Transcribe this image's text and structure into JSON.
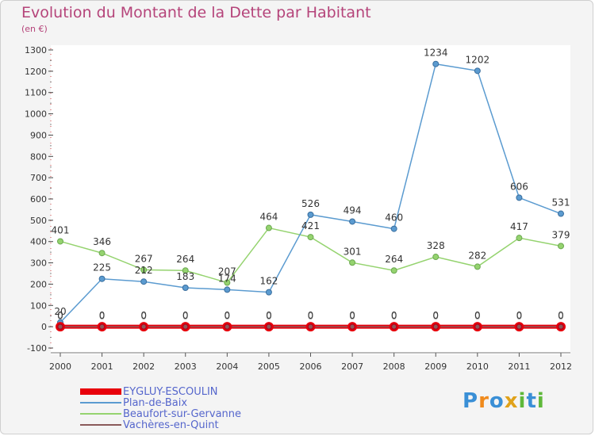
{
  "chart_data": {
    "type": "line",
    "title": "Evolution du Montant de la Dette par Habitant",
    "subtitle": "(en €)",
    "x": [
      "2000",
      "2001",
      "2002",
      "2003",
      "2004",
      "2005",
      "2006",
      "2007",
      "2008",
      "2009",
      "2010",
      "2011",
      "2012"
    ],
    "ylim": [
      -100,
      1300
    ],
    "yticks": [
      "-100",
      "0",
      "100",
      "200",
      "300",
      "400",
      "500",
      "600",
      "700",
      "800",
      "900",
      "1000",
      "1100",
      "1200",
      "1300"
    ],
    "grid": false,
    "legend_position": "bottom-left",
    "series": [
      {
        "name": "EYGLUY-ESCOULIN",
        "color": "#e8000b",
        "values": [
          0,
          0,
          0,
          0,
          0,
          0,
          0,
          0,
          0,
          0,
          0,
          0,
          0
        ],
        "labels": [
          "0",
          "0",
          "0",
          "0",
          "0",
          "0",
          "0",
          "0",
          "0",
          "0",
          "0",
          "0",
          "0"
        ]
      },
      {
        "name": "Plan-de-Baix",
        "color": "#5b9bd0",
        "values": [
          20,
          225,
          212,
          183,
          174,
          162,
          526,
          494,
          460,
          1234,
          1202,
          606,
          531
        ],
        "labels": [
          "20",
          "225",
          "212",
          "183",
          "174",
          "162",
          "526",
          "494",
          "460",
          "1234",
          "1202",
          "606",
          "531"
        ]
      },
      {
        "name": "Beaufort-sur-Gervanne",
        "color": "#95d36f",
        "values": [
          401,
          346,
          267,
          264,
          207,
          464,
          421,
          301,
          264,
          328,
          282,
          417,
          379
        ],
        "labels": [
          "401",
          "346",
          "267",
          "264",
          "207",
          "464",
          "421",
          "301",
          "264",
          "328",
          "282",
          "417",
          "379"
        ]
      },
      {
        "name": "Vachères-en-Quint",
        "color": "#8a5a5a",
        "values": [
          0,
          0,
          0,
          0,
          0,
          0,
          0,
          0,
          0,
          0,
          0,
          0,
          0
        ],
        "labels": [
          "0",
          "0",
          "0",
          "0",
          "0",
          "0",
          "0",
          "0",
          "0",
          "0",
          "0",
          "0",
          "0"
        ]
      }
    ]
  },
  "brand": {
    "letters": [
      "P",
      "r",
      "o",
      "x",
      "i",
      "t",
      "i"
    ],
    "colors": [
      "#3a8fd6",
      "#f08a1c",
      "#3a8fd6",
      "#e0a21a",
      "#5fb83a",
      "#3a8fd6",
      "#5fb83a"
    ]
  }
}
